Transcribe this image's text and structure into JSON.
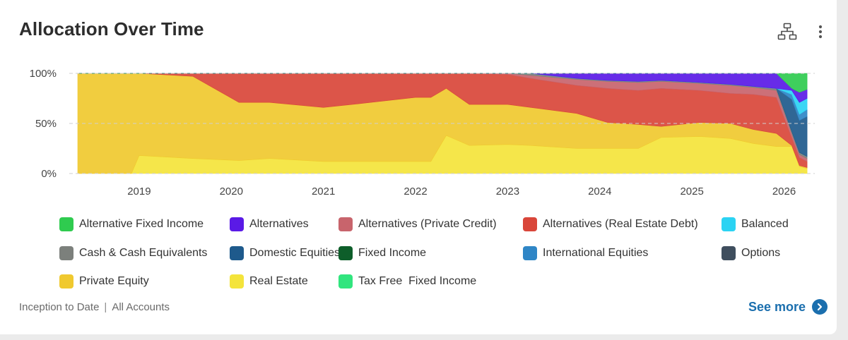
{
  "card": {
    "title": "Allocation Over Time",
    "footer": {
      "range": "Inception to Date",
      "separator": "|",
      "accounts": "All Accounts"
    },
    "see_more": "See more"
  },
  "icons": {
    "hierarchy": "hierarchy-icon",
    "more": "more-vertical-icon",
    "see_more": "chevron-right-icon"
  },
  "legend": [
    [
      {
        "name": "Alternative Fixed Income",
        "color": "#2fcb4f"
      },
      {
        "name": "Alternatives",
        "color": "#5a1ae6"
      },
      {
        "name": "Alternatives (Private Credit)",
        "color": "#c8646c"
      },
      {
        "name": "Alternatives (Real Estate Debt)",
        "color": "#d9463a"
      },
      {
        "name": "Balanced",
        "color": "#2bd3f3"
      }
    ],
    [
      {
        "name": "Cash & Cash Equivalents",
        "color": "#7c807c"
      },
      {
        "name": "Domestic Equities",
        "color": "#1e5a8c"
      },
      {
        "name": "Fixed Income",
        "color": "#0e5e2a"
      },
      {
        "name": "International Equities",
        "color": "#2f86c6"
      },
      {
        "name": "Options",
        "color": "#3f4e5e"
      }
    ],
    [
      {
        "name": "Private Equity",
        "color": "#f0c92f"
      },
      {
        "name": "Real Estate",
        "color": "#f4e43b"
      },
      {
        "name": "Tax Free  Fixed Income",
        "color": "#31e57e"
      }
    ]
  ],
  "chart_data": {
    "type": "area",
    "stacked": true,
    "percent": true,
    "x_tick_labels": [
      "2019",
      "2020",
      "2021",
      "2022",
      "2023",
      "2024",
      "2025",
      "2026"
    ],
    "y_tick_labels": [
      "100%",
      "50%",
      "0%"
    ],
    "ylim": [
      0,
      100
    ],
    "xlim": [
      "2018-05",
      "2026-05"
    ],
    "grid": "dashed-horizontal",
    "x": [
      "2018-05",
      "2018-12",
      "2019-01",
      "2019-08",
      "2020-02",
      "2020-06",
      "2021-01",
      "2021-06",
      "2022-01",
      "2022-03",
      "2022-05",
      "2022-08",
      "2023-01",
      "2023-04",
      "2023-10",
      "2024-02",
      "2024-06",
      "2024-09",
      "2025-02",
      "2025-06",
      "2025-09",
      "2025-12",
      "2026-02",
      "2026-03",
      "2026-04"
    ],
    "series": [
      {
        "name": "Real Estate",
        "color": "#f4e43b",
        "values": [
          0,
          0,
          18,
          15,
          13,
          15,
          12,
          12,
          12,
          12,
          38,
          28,
          29,
          28,
          25,
          25,
          25,
          36,
          37,
          35,
          30,
          27,
          27,
          7,
          5
        ]
      },
      {
        "name": "Private Equity",
        "color": "#f0c92f",
        "values": [
          100,
          100,
          82,
          82,
          58,
          56,
          54,
          58,
          64,
          64,
          47,
          41,
          40,
          38,
          35,
          26,
          24,
          11,
          14,
          15,
          14,
          13,
          1,
          1,
          1
        ]
      },
      {
        "name": "Alternatives (Real Estate Debt)",
        "color": "#d9463a",
        "values": [
          0,
          0,
          0,
          3,
          29,
          29,
          34,
          30,
          24,
          24,
          15,
          31,
          30,
          29,
          28,
          34,
          34,
          38,
          32,
          30,
          35,
          36,
          8,
          8,
          6
        ]
      },
      {
        "name": "Alternatives (Private Credit)",
        "color": "#c8646c",
        "values": [
          0,
          0,
          0,
          0,
          0,
          0,
          0,
          0,
          0,
          0,
          0,
          0,
          1,
          3,
          6,
          7,
          8,
          7,
          7,
          8,
          7,
          7,
          4,
          3,
          3
        ]
      },
      {
        "name": "Cash & Cash Equivalents",
        "color": "#7c807c",
        "values": [
          0,
          0,
          0,
          0,
          0,
          0,
          0,
          0,
          0,
          0,
          0,
          0,
          0,
          2,
          1,
          1,
          1,
          1,
          1,
          1,
          1,
          2,
          2,
          2,
          2
        ]
      },
      {
        "name": "Domestic Equities",
        "color": "#1e5a8c",
        "values": [
          0,
          0,
          0,
          0,
          0,
          0,
          0,
          0,
          0,
          0,
          0,
          0,
          0,
          0,
          0,
          0,
          0,
          0,
          0,
          0,
          0,
          0,
          32,
          32,
          40
        ]
      },
      {
        "name": "International Equities",
        "color": "#2f86c6",
        "values": [
          0,
          0,
          0,
          0,
          0,
          0,
          0,
          0,
          0,
          0,
          0,
          0,
          0,
          0,
          0,
          0,
          0,
          0,
          0,
          0,
          0,
          0,
          5,
          6,
          7
        ]
      },
      {
        "name": "Balanced",
        "color": "#2bd3f3",
        "values": [
          0,
          0,
          0,
          0,
          0,
          0,
          0,
          0,
          0,
          0,
          0,
          0,
          0,
          0,
          0,
          0,
          0,
          0,
          0,
          0,
          0,
          0,
          4,
          12,
          11
        ]
      },
      {
        "name": "Alternatives",
        "color": "#5a1ae6",
        "values": [
          0,
          0,
          0,
          0,
          0,
          0,
          0,
          0,
          0,
          0,
          0,
          0,
          0,
          0,
          5,
          7,
          8,
          7,
          9,
          11,
          13,
          15,
          2,
          10,
          9
        ]
      },
      {
        "name": "Alternative Fixed Income",
        "color": "#2fcb4f",
        "values": [
          0,
          0,
          0,
          0,
          0,
          0,
          0,
          0,
          0,
          0,
          0,
          0,
          0,
          0,
          0,
          0,
          0,
          0,
          0,
          0,
          0,
          0,
          15,
          19,
          16
        ]
      }
    ]
  }
}
